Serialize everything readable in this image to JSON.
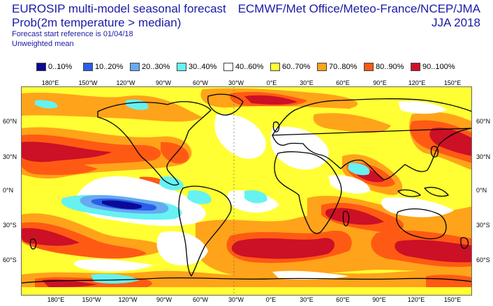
{
  "header": {
    "title": "EUROSIP multi-model seasonal forecast",
    "subtitle": "Prob(2m temperature > median)",
    "reference": "Forecast start reference is 01/04/18",
    "weighting": "Unweighted mean",
    "centres": "ECMWF/Met Office/Meteo-France/NCEP/JMA",
    "season": "JJA 2018"
  },
  "legend": [
    {
      "label": "0..10%",
      "color": "#0a0a96"
    },
    {
      "label": "10..20%",
      "color": "#2a5ee8"
    },
    {
      "label": "20..30%",
      "color": "#66aaf2"
    },
    {
      "label": "30..40%",
      "color": "#66f2f2"
    },
    {
      "label": "40..60%",
      "color": "#ffffff"
    },
    {
      "label": "60..70%",
      "color": "#ffff33"
    },
    {
      "label": "70..80%",
      "color": "#ffa31a"
    },
    {
      "label": "80..90%",
      "color": "#ff5a14"
    },
    {
      "label": "90..100%",
      "color": "#cc1026"
    }
  ],
  "axes": {
    "lon_top": [
      "180°E",
      "150°W",
      "120°W",
      "90°W",
      "60°W",
      "30°W",
      "0°E",
      "30°E",
      "60°E",
      "90°E",
      "120°E",
      "150°E"
    ],
    "lon_bottom": [
      "180°E",
      "150°W",
      "120°W",
      "90°W",
      "60°W",
      "30°W",
      "0°E",
      "30°E",
      "60°E",
      "90°E",
      "120°E",
      "150°E"
    ],
    "lat_left": [
      "60°N",
      "30°N",
      "0°N",
      "30°S",
      "60°S"
    ],
    "lat_right": [
      "60°N",
      "30°N",
      "0°N",
      "30°S",
      "60°S"
    ]
  }
}
